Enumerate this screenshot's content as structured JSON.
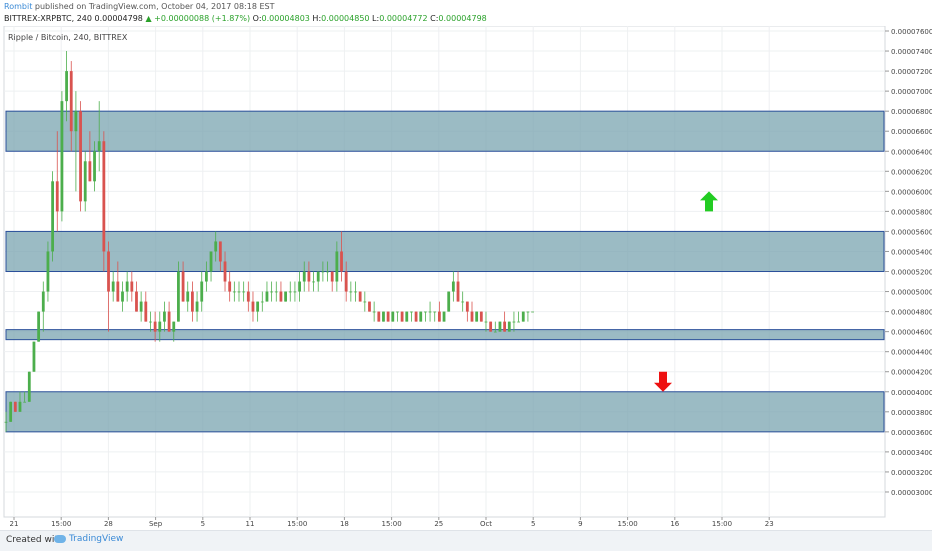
{
  "header": {
    "author": "Rombit",
    "published_text": " published on TradingView.com, October 04, 2017 08:18 EST",
    "symbol": "BITTREX:XRPBTC, 240",
    "price": "0.00004798",
    "change": "+0.00000088 (+1.87%)",
    "o_label": "O:",
    "o_value": "0.00004803",
    "h_label": "H:",
    "h_value": "0.00004850",
    "l_label": "L:",
    "l_value": "0.00004772",
    "c_label": "C:",
    "c_value": "0.00004798"
  },
  "footer": {
    "created_with": "Created with",
    "brand": "TradingView"
  },
  "colors": {
    "zone_fill": "#7aa4b0",
    "zone_stroke": "#2a4f9a",
    "up_candle": "#4cae4c",
    "down_candle": "#d9534f",
    "up_arrow": "#22cc22",
    "down_arrow": "#ee1111",
    "price_line": "#e04b4b"
  },
  "chart_data": {
    "type": "candlestick",
    "title": "Ripple / Bitcoin, 240, BITTREX",
    "ylim": [
      2.9e-06,
      7.6e-06
    ],
    "y_ticks": [
      "0.00007600",
      "0.00007400",
      "0.00007200",
      "0.00007000",
      "0.00006800",
      "0.00006600",
      "0.00006400",
      "0.00006200",
      "0.00006000",
      "0.00005800",
      "0.00005600",
      "0.00005400",
      "0.00005200",
      "0.00005000",
      "0.00004800",
      "0.00004600",
      "0.00004400",
      "0.00004200",
      "0.00004000",
      "0.00003800",
      "0.00003600",
      "0.00003400",
      "0.00003200",
      "0.00003000"
    ],
    "x_ticks": [
      "21",
      "15:00",
      "28",
      "Sep",
      "5",
      "11",
      "15:00",
      "18",
      "15:00",
      "25",
      "Oct",
      "5",
      "9",
      "15:00",
      "16",
      "15:00",
      "23"
    ],
    "last_price_label": "0.00004798",
    "countdown_label": "02:41:40",
    "last_price": 4.798e-05,
    "zones": [
      {
        "top": 6.8e-06,
        "bottom": 6.4e-06
      },
      {
        "top": 5.6e-06,
        "bottom": 5.2e-06
      },
      {
        "top": 4.62e-06,
        "bottom": 4.52e-06
      },
      {
        "top": 4e-06,
        "bottom": 3.6e-06
      }
    ],
    "signals": [
      {
        "direction": "up",
        "value": 5.9e-06
      },
      {
        "direction": "down",
        "value": 4.1e-06
      }
    ],
    "candles": [
      [
        3.7e-06,
        3.8e-06,
        3.6e-06,
        3.7e-06
      ],
      [
        3.7e-06,
        3.9e-06,
        3.7e-06,
        3.9e-06
      ],
      [
        3.9e-06,
        3.9e-06,
        3.8e-06,
        3.8e-06
      ],
      [
        3.8e-06,
        4e-06,
        3.8e-06,
        3.9e-06
      ],
      [
        3.9e-06,
        4e-06,
        3.9e-06,
        3.9e-06
      ],
      [
        3.9e-06,
        4.2e-06,
        3.9e-06,
        4.2e-06
      ],
      [
        4.2e-06,
        4.5e-06,
        4.2e-06,
        4.5e-06
      ],
      [
        4.5e-06,
        4.8e-06,
        4.5e-06,
        4.8e-06
      ],
      [
        4.8e-06,
        5.1e-06,
        4.6e-06,
        5e-06
      ],
      [
        5e-06,
        5.5e-06,
        4.9e-06,
        5.4e-06
      ],
      [
        5.4e-06,
        6.2e-06,
        5.3e-06,
        6.1e-06
      ],
      [
        6.1e-06,
        6.6e-06,
        5.6e-06,
        5.8e-06
      ],
      [
        5.8e-06,
        7e-06,
        5.7e-06,
        6.9e-06
      ],
      [
        6.9e-06,
        7.4e-06,
        6.7e-06,
        7.2e-06
      ],
      [
        7.2e-06,
        7.3e-06,
        6.4e-06,
        6.6e-06
      ],
      [
        6.6e-06,
        7e-06,
        6e-06,
        6.8e-06
      ],
      [
        6.8e-06,
        6.9e-06,
        5.8e-06,
        5.9e-06
      ],
      [
        5.9e-06,
        6.4e-06,
        5.8e-06,
        6.3e-06
      ],
      [
        6.3e-06,
        6.6e-06,
        6.1e-06,
        6.1e-06
      ],
      [
        6.1e-06,
        6.5e-06,
        6e-06,
        6.4e-06
      ],
      [
        6.4e-06,
        6.9e-06,
        6.2e-06,
        6.5e-06
      ],
      [
        6.5e-06,
        6.6e-06,
        5.2e-06,
        5.4e-06
      ],
      [
        5.4e-06,
        5.5e-06,
        4.6e-06,
        5e-06
      ],
      [
        5e-06,
        5.2e-06,
        4.9e-06,
        5.1e-06
      ],
      [
        5.1e-06,
        5.3e-06,
        4.9e-06,
        4.9e-06
      ],
      [
        4.9e-06,
        5.1e-06,
        4.8e-06,
        5e-06
      ],
      [
        5e-06,
        5.2e-06,
        4.9e-06,
        5.1e-06
      ],
      [
        5.1e-06,
        5.2e-06,
        4.9e-06,
        5e-06
      ],
      [
        5e-06,
        5.1e-06,
        4.8e-06,
        4.8e-06
      ],
      [
        4.8e-06,
        5e-06,
        4.7e-06,
        4.9e-06
      ],
      [
        4.9e-06,
        5e-06,
        4.7e-06,
        4.7e-06
      ],
      [
        4.7e-06,
        4.8e-06,
        4.6e-06,
        4.7e-06
      ],
      [
        4.7e-06,
        4.8e-06,
        4.5e-06,
        4.6e-06
      ],
      [
        4.6e-06,
        4.8e-06,
        4.5e-06,
        4.7e-06
      ],
      [
        4.7e-06,
        4.9e-06,
        4.6e-06,
        4.8e-06
      ],
      [
        4.8e-06,
        4.9e-06,
        4.6e-06,
        4.6e-06
      ],
      [
        4.6e-06,
        4.7e-06,
        4.5e-06,
        4.7e-06
      ],
      [
        4.7e-06,
        5.3e-06,
        4.7e-06,
        5.2e-06
      ],
      [
        5.2e-06,
        5.3e-06,
        4.9e-06,
        4.9e-06
      ],
      [
        4.9e-06,
        5.1e-06,
        4.8e-06,
        5e-06
      ],
      [
        5e-06,
        5.1e-06,
        4.7e-06,
        4.8e-06
      ],
      [
        4.8e-06,
        5e-06,
        4.7e-06,
        4.9e-06
      ],
      [
        4.9e-06,
        5.2e-06,
        4.8e-06,
        5.1e-06
      ],
      [
        5.1e-06,
        5.3e-06,
        5e-06,
        5.2e-06
      ],
      [
        5.2e-06,
        5.4e-06,
        5.1e-06,
        5.4e-06
      ],
      [
        5.4e-06,
        5.6e-06,
        5.3e-06,
        5.5e-06
      ],
      [
        5.5e-06,
        5.5e-06,
        5.2e-06,
        5.3e-06
      ],
      [
        5.3e-06,
        5.4e-06,
        5e-06,
        5.1e-06
      ],
      [
        5.1e-06,
        5.2e-06,
        4.9e-06,
        5e-06
      ],
      [
        5e-06,
        5.1e-06,
        4.9e-06,
        5e-06
      ],
      [
        5e-06,
        5.1e-06,
        4.9e-06,
        5e-06
      ],
      [
        5e-06,
        5.1e-06,
        4.9e-06,
        5e-06
      ],
      [
        5e-06,
        5.1e-06,
        4.8e-06,
        4.9e-06
      ],
      [
        4.9e-06,
        5e-06,
        4.7e-06,
        4.8e-06
      ],
      [
        4.8e-06,
        4.9e-06,
        4.7e-06,
        4.9e-06
      ],
      [
        4.9e-06,
        5e-06,
        4.8e-06,
        4.9e-06
      ],
      [
        4.9e-06,
        5.1e-06,
        4.9e-06,
        5e-06
      ],
      [
        5e-06,
        5.1e-06,
        4.9e-06,
        5e-06
      ],
      [
        5e-06,
        5.1e-06,
        4.9e-06,
        5e-06
      ],
      [
        5e-06,
        5.1e-06,
        4.9e-06,
        4.9e-06
      ],
      [
        4.9e-06,
        5e-06,
        4.9e-06,
        5e-06
      ],
      [
        5e-06,
        5.1e-06,
        4.9e-06,
        5e-06
      ],
      [
        5e-06,
        5.1e-06,
        4.9e-06,
        5e-06
      ],
      [
        5e-06,
        5.2e-06,
        4.9e-06,
        5.1e-06
      ],
      [
        5.1e-06,
        5.3e-06,
        5e-06,
        5.2e-06
      ],
      [
        5.2e-06,
        5.3e-06,
        5e-06,
        5.1e-06
      ],
      [
        5.1e-06,
        5.2e-06,
        5e-06,
        5.1e-06
      ],
      [
        5.1e-06,
        5.2e-06,
        5e-06,
        5.2e-06
      ],
      [
        5.2e-06,
        5.3e-06,
        5.1e-06,
        5.2e-06
      ],
      [
        5.2e-06,
        5.3e-06,
        5.1e-06,
        5.2e-06
      ],
      [
        5.2e-06,
        5.2e-06,
        5e-06,
        5.1e-06
      ],
      [
        5.1e-06,
        5.5e-06,
        5e-06,
        5.4e-06
      ],
      [
        5.4e-06,
        5.6e-06,
        5.1e-06,
        5.2e-06
      ],
      [
        5.2e-06,
        5.3e-06,
        4.9e-06,
        5e-06
      ],
      [
        5e-06,
        5.1e-06,
        4.9e-06,
        5e-06
      ],
      [
        5e-06,
        5.1e-06,
        4.9e-06,
        5e-06
      ],
      [
        5e-06,
        5e-06,
        4.9e-06,
        4.9e-06
      ],
      [
        4.9e-06,
        5e-06,
        4.8e-06,
        4.9e-06
      ],
      [
        4.9e-06,
        4.9e-06,
        4.8e-06,
        4.8e-06
      ],
      [
        4.8e-06,
        4.9e-06,
        4.7e-06,
        4.8e-06
      ],
      [
        4.8e-06,
        4.8e-06,
        4.7e-06,
        4.7e-06
      ],
      [
        4.7e-06,
        4.8e-06,
        4.7e-06,
        4.8e-06
      ],
      [
        4.8e-06,
        4.8e-06,
        4.7e-06,
        4.7e-06
      ],
      [
        4.7e-06,
        4.8e-06,
        4.7e-06,
        4.8e-06
      ],
      [
        4.8e-06,
        4.8e-06,
        4.7e-06,
        4.8e-06
      ],
      [
        4.8e-06,
        4.8e-06,
        4.7e-06,
        4.7e-06
      ],
      [
        4.7e-06,
        4.8e-06,
        4.7e-06,
        4.8e-06
      ],
      [
        4.8e-06,
        4.8e-06,
        4.7e-06,
        4.8e-06
      ],
      [
        4.8e-06,
        4.8e-06,
        4.7e-06,
        4.7e-06
      ],
      [
        4.7e-06,
        4.8e-06,
        4.7e-06,
        4.8e-06
      ],
      [
        4.8e-06,
        4.8e-06,
        4.7e-06,
        4.8e-06
      ],
      [
        4.8e-06,
        4.9e-06,
        4.7e-06,
        4.8e-06
      ],
      [
        4.8e-06,
        4.8e-06,
        4.7e-06,
        4.8e-06
      ],
      [
        4.8e-06,
        4.9e-06,
        4.7e-06,
        4.7e-06
      ],
      [
        4.7e-06,
        4.8e-06,
        4.7e-06,
        4.8e-06
      ],
      [
        4.8e-06,
        5e-06,
        4.8e-06,
        5e-06
      ],
      [
        5e-06,
        5.2e-06,
        4.9e-06,
        5.1e-06
      ],
      [
        5.1e-06,
        5.2e-06,
        4.9e-06,
        4.9e-06
      ],
      [
        4.9e-06,
        5e-06,
        4.8e-06,
        4.9e-06
      ],
      [
        4.9e-06,
        4.9e-06,
        4.7e-06,
        4.8e-06
      ],
      [
        4.8e-06,
        4.9e-06,
        4.7e-06,
        4.7e-06
      ],
      [
        4.7e-06,
        4.8e-06,
        4.7e-06,
        4.8e-06
      ],
      [
        4.8e-06,
        4.8e-06,
        4.7e-06,
        4.7e-06
      ],
      [
        4.7e-06,
        4.8e-06,
        4.6e-06,
        4.7e-06
      ],
      [
        4.7e-06,
        4.7e-06,
        4.6e-06,
        4.6e-06
      ],
      [
        4.6e-06,
        4.7e-06,
        4.6e-06,
        4.6e-06
      ],
      [
        4.6e-06,
        4.7e-06,
        4.6e-06,
        4.7e-06
      ],
      [
        4.7e-06,
        4.8e-06,
        4.6e-06,
        4.6e-06
      ],
      [
        4.6e-06,
        4.7e-06,
        4.6e-06,
        4.7e-06
      ],
      [
        4.7e-06,
        4.8e-06,
        4.6e-06,
        4.7e-06
      ],
      [
        4.7e-06,
        4.8e-06,
        4.7e-06,
        4.7e-06
      ],
      [
        4.7e-06,
        4.8e-06,
        4.7e-06,
        4.8e-06
      ],
      [
        4.8e-06,
        4.8e-06,
        4.7e-06,
        4.8e-06
      ],
      [
        4.8e-06,
        4.8e-06,
        4.8e-06,
        4.8e-06
      ]
    ]
  }
}
